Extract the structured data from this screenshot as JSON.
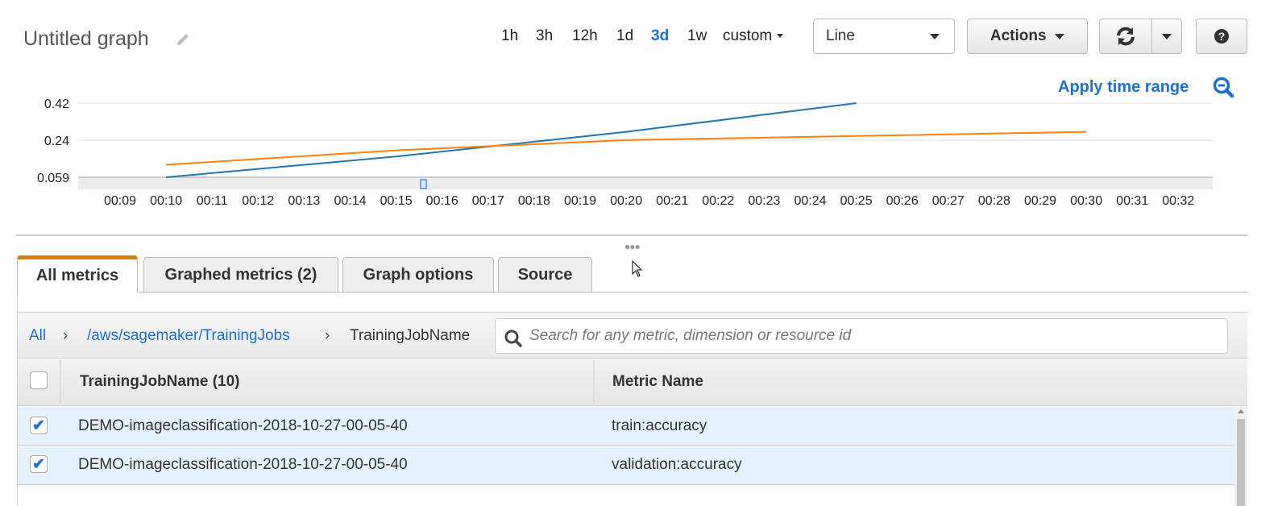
{
  "header": {
    "title": "Untitled graph",
    "time_ranges": [
      "1h",
      "3h",
      "12h",
      "1d",
      "3d",
      "1w"
    ],
    "active_range": "3d",
    "custom_label": "custom",
    "chart_type": "Line",
    "actions_label": "Actions",
    "apply_time_range": "Apply time range"
  },
  "colors": {
    "accent": "#1f6fd1",
    "series_blue": "#1f77b4",
    "series_orange": "#ff7f0e",
    "tab_active": "#e07b00"
  },
  "chart_data": {
    "type": "line",
    "x": [
      "00:09",
      "00:10",
      "00:11",
      "00:12",
      "00:13",
      "00:14",
      "00:15",
      "00:16",
      "00:17",
      "00:18",
      "00:19",
      "00:20",
      "00:21",
      "00:22",
      "00:23",
      "00:24",
      "00:25",
      "00:26",
      "00:27",
      "00:28",
      "00:29",
      "00:30",
      "00:31",
      "00:32"
    ],
    "yticks": [
      "0.42",
      "0.24",
      "0.059"
    ],
    "ylim": [
      0.059,
      0.42
    ],
    "grid": true,
    "series": [
      {
        "color": "#1f77b4",
        "points": [
          [
            "00:10",
            0.059
          ],
          [
            "00:15",
            0.16
          ],
          [
            "00:20",
            0.28
          ],
          [
            "00:25",
            0.42
          ]
        ]
      },
      {
        "color": "#ff7f0e",
        "points": [
          [
            "00:10",
            0.12
          ],
          [
            "00:15",
            0.19
          ],
          [
            "00:20",
            0.24
          ],
          [
            "00:25",
            0.26
          ],
          [
            "00:30",
            0.28
          ]
        ]
      }
    ]
  },
  "tabs": [
    {
      "label": "All metrics"
    },
    {
      "label": "Graphed metrics (2)"
    },
    {
      "label": "Graph options"
    },
    {
      "label": "Source"
    }
  ],
  "breadcrumb": {
    "all": "All",
    "namespace": "/aws/sagemaker/TrainingJobs",
    "dimension": "TrainingJobName",
    "sep": "›"
  },
  "search": {
    "placeholder": "Search for any metric, dimension or resource id"
  },
  "table": {
    "columns": [
      "TrainingJobName (10)",
      "Metric Name"
    ],
    "rows": [
      {
        "job": "DEMO-imageclassification-2018-10-27-00-05-40",
        "metric": "train:accuracy",
        "checked": true
      },
      {
        "job": "DEMO-imageclassification-2018-10-27-00-05-40",
        "metric": "validation:accuracy",
        "checked": true
      }
    ]
  }
}
